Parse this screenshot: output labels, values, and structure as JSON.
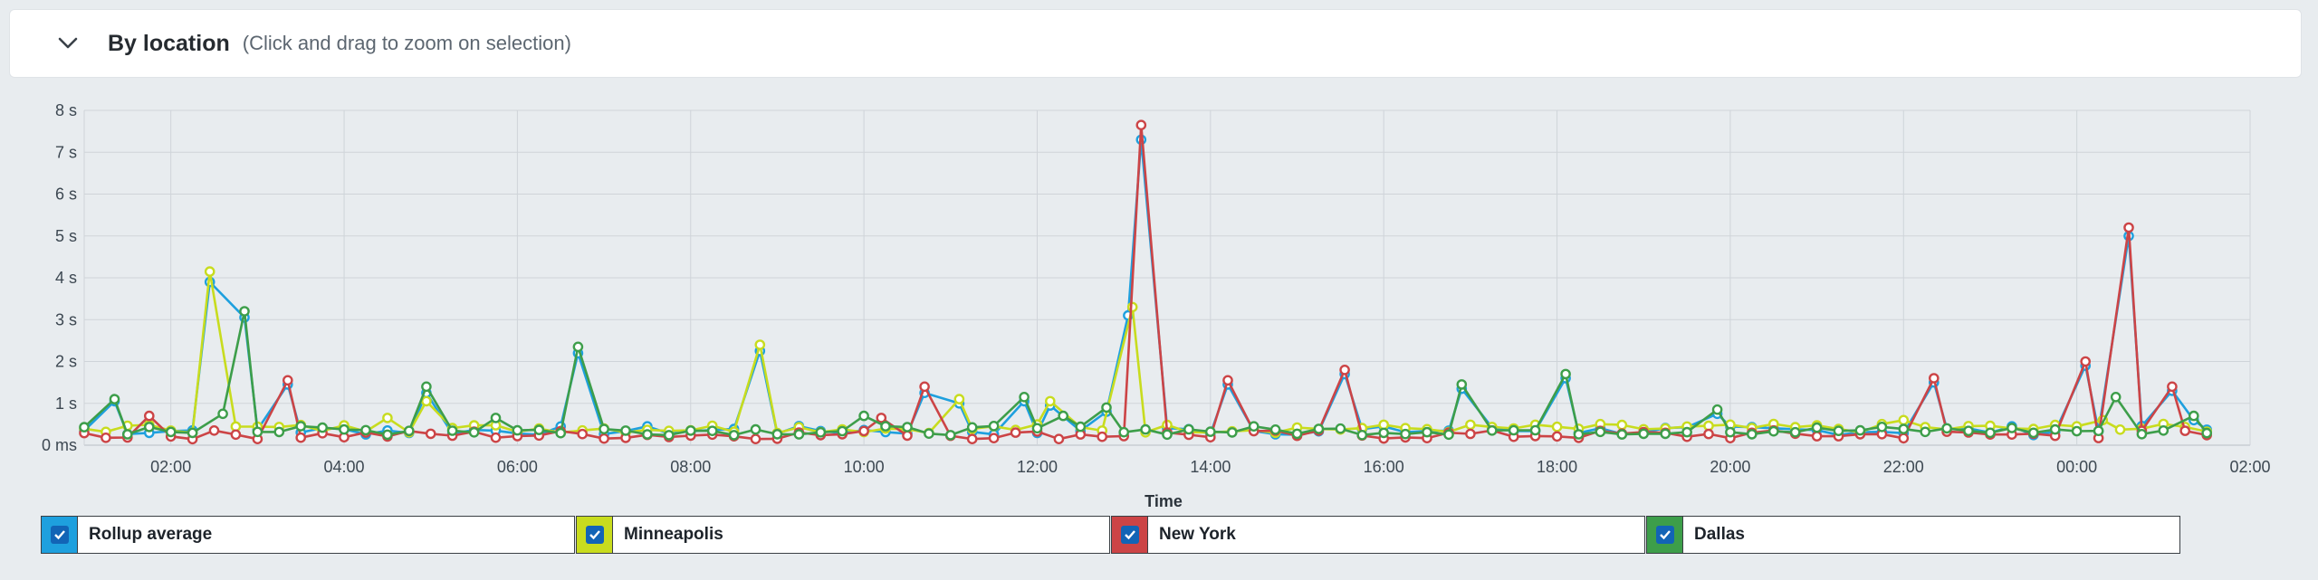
{
  "header": {
    "title": "By location",
    "subtitle": "(Click and drag to zoom on selection)",
    "toggle_icon": "chevron-down-icon"
  },
  "colors": {
    "Rollup average": "#1ea0de",
    "Minneapolis": "#c8dc1e",
    "New York": "#cc4446",
    "Dallas": "#3d9e4a",
    "checkbox": "#1264b6"
  },
  "chart_data": {
    "type": "line",
    "xlabel": "Time",
    "ylabel": "",
    "yticks": [
      "0 ms",
      "1 s",
      "2 s",
      "3 s",
      "4 s",
      "5 s",
      "6 s",
      "7 s",
      "8 s"
    ],
    "ylim": [
      0,
      8
    ],
    "xlim_hours": [
      1,
      26
    ],
    "xticks": [
      "02:00",
      "04:00",
      "06:00",
      "08:00",
      "10:00",
      "12:00",
      "14:00",
      "16:00",
      "18:00",
      "20:00",
      "22:00",
      "00:00",
      "02:00"
    ],
    "grid": true,
    "legend_position": "bottom",
    "series": [
      {
        "name": "Rollup average",
        "baseline": 0.35,
        "peaks": [
          [
            1.35,
            1.05
          ],
          [
            2.45,
            3.9
          ],
          [
            2.85,
            3.05
          ],
          [
            3.35,
            1.45
          ],
          [
            4.95,
            1.25
          ],
          [
            6.7,
            2.2
          ],
          [
            8.8,
            2.25
          ],
          [
            10.7,
            1.25
          ],
          [
            11.1,
            1.0
          ],
          [
            11.85,
            1.05
          ],
          [
            12.15,
            0.95
          ],
          [
            12.8,
            0.8
          ],
          [
            13.05,
            3.1
          ],
          [
            13.2,
            7.3
          ],
          [
            14.2,
            1.45
          ],
          [
            15.55,
            1.7
          ],
          [
            16.9,
            1.35
          ],
          [
            18.1,
            1.6
          ],
          [
            19.85,
            0.75
          ],
          [
            22.35,
            1.5
          ],
          [
            24.1,
            1.9
          ],
          [
            24.6,
            5.0
          ],
          [
            25.1,
            1.3
          ],
          [
            25.35,
            0.6
          ]
        ]
      },
      {
        "name": "Minneapolis",
        "baseline": 0.4,
        "peaks": [
          [
            2.45,
            4.15
          ],
          [
            4.5,
            0.65
          ],
          [
            4.95,
            1.05
          ],
          [
            8.8,
            2.4
          ],
          [
            11.1,
            1.1
          ],
          [
            12.15,
            1.05
          ],
          [
            13.1,
            3.3
          ],
          [
            22,
            0.6
          ],
          [
            24.3,
            0.6
          ]
        ]
      },
      {
        "name": "New York",
        "baseline": 0.25,
        "peaks": [
          [
            1.75,
            0.7
          ],
          [
            3.35,
            1.55
          ],
          [
            10.2,
            0.65
          ],
          [
            10.7,
            1.4
          ],
          [
            13.2,
            7.65
          ],
          [
            14.2,
            1.55
          ],
          [
            15.55,
            1.8
          ],
          [
            22.35,
            1.6
          ],
          [
            24.1,
            2.0
          ],
          [
            24.6,
            5.2
          ],
          [
            25.1,
            1.4
          ]
        ]
      },
      {
        "name": "Dallas",
        "baseline": 0.35,
        "peaks": [
          [
            1.35,
            1.1
          ],
          [
            2.6,
            0.75
          ],
          [
            2.85,
            3.2
          ],
          [
            4.95,
            1.4
          ],
          [
            5.75,
            0.65
          ],
          [
            6.7,
            2.35
          ],
          [
            10.0,
            0.7
          ],
          [
            11.85,
            1.15
          ],
          [
            12.3,
            0.7
          ],
          [
            12.8,
            0.9
          ],
          [
            16.9,
            1.45
          ],
          [
            18.1,
            1.7
          ],
          [
            19.85,
            0.85
          ],
          [
            24.45,
            1.15
          ],
          [
            25.35,
            0.7
          ]
        ]
      }
    ]
  },
  "legend": [
    {
      "label": "Rollup average",
      "checked": true
    },
    {
      "label": "Minneapolis",
      "checked": true
    },
    {
      "label": "New York",
      "checked": true
    },
    {
      "label": "Dallas",
      "checked": true
    }
  ]
}
